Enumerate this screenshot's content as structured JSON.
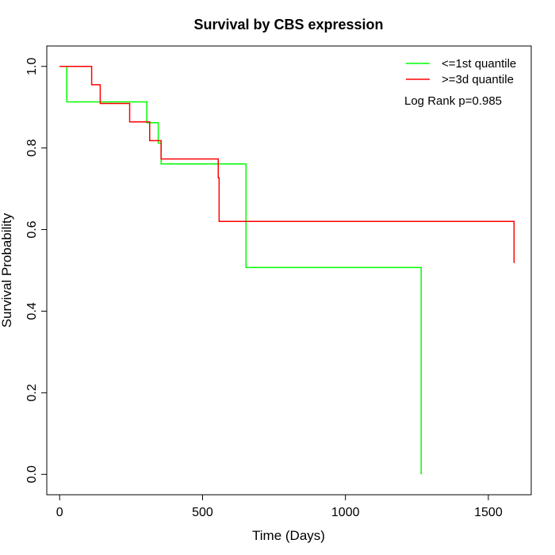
{
  "chart_data": {
    "type": "line",
    "title": "Survival by CBS expression",
    "xlabel": "Time (Days)",
    "ylabel": "Survival Probability",
    "xlim": [
      -45,
      1650
    ],
    "ylim": [
      -0.05,
      1.05
    ],
    "x_ticks": [
      0,
      500,
      1000,
      1500
    ],
    "x_tick_labels": [
      "0",
      "500",
      "1000",
      "1500"
    ],
    "y_ticks": [
      0.0,
      0.2,
      0.4,
      0.6,
      0.8,
      1.0
    ],
    "y_tick_labels": [
      "0.0",
      "0.2",
      "0.4",
      "0.6",
      "0.8",
      "1.0"
    ],
    "grid": false,
    "legend_position": "top-right",
    "annotation": "Log Rank p=0.985",
    "series": [
      {
        "name": "<=1st quantile",
        "color": "#00ff00",
        "step": true,
        "x": [
          0,
          22,
          25,
          285,
          305,
          345,
          355,
          648,
          652,
          1262,
          1265
        ],
        "y": [
          1.0,
          1.0,
          0.913,
          0.913,
          0.862,
          0.812,
          0.761,
          0.761,
          0.507,
          0.507,
          0.0
        ]
      },
      {
        "name": ">=3d quantile",
        "color": "#ff0000",
        "step": true,
        "x": [
          0,
          103,
          112,
          142,
          245,
          315,
          355,
          382,
          555,
          558,
          1590
        ],
        "y": [
          1.0,
          1.0,
          0.955,
          0.909,
          0.864,
          0.818,
          0.773,
          0.773,
          0.727,
          0.62,
          0.518
        ]
      }
    ]
  }
}
